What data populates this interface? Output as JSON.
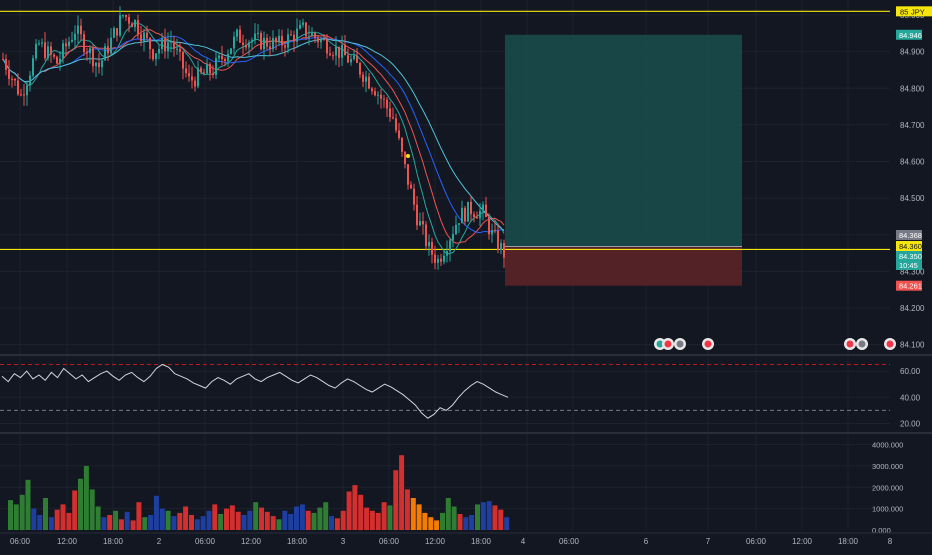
{
  "colors": {
    "background": "#131722",
    "grid": "#1e222d",
    "axis_text": "#b2b5be",
    "candle_up": "#26a69a",
    "candle_down": "#ef5350",
    "hline": "#f5e50a",
    "ma_fast": "#26a69a",
    "ma_mid": "#ef5350",
    "ma_slow": "#2962ff",
    "ma_slowest": "#4fc3d8",
    "profit_zone": "#1a4a4a",
    "loss_zone": "#5a2428",
    "rsi_line": "#d1d4dc",
    "rsi_band": "#787b86",
    "rsi_top_line": "#b71c1c",
    "vol_green": "#2e7d32",
    "vol_red": "#d32f2f",
    "vol_blue": "#1e3fa0",
    "vol_orange": "#f57c00",
    "badge_blue": "#26a69a",
    "badge_gray": "#787b86",
    "badge_red": "#f23645"
  },
  "price_axis": {
    "symbol_tag": "85",
    "symbol_tag_suffix": "JPY",
    "ticks": [
      "85.000",
      "84.900",
      "84.800",
      "84.700",
      "84.600",
      "84.500",
      "84.300",
      "84.200",
      "84.100"
    ],
    "labels": [
      {
        "value": "84.946",
        "kind": "target"
      },
      {
        "value": "84.368",
        "kind": "gray"
      },
      {
        "value": "84.360",
        "kind": "yellow"
      },
      {
        "value": "84.350",
        "kind": "current"
      },
      {
        "value": "10:45",
        "kind": "countdown"
      },
      {
        "value": "84.261",
        "kind": "stop"
      }
    ]
  },
  "rsi_axis": {
    "ticks": [
      "60.00",
      "40.00",
      "20.00"
    ]
  },
  "volume_axis": {
    "ticks": [
      "4000.000",
      "3000.000",
      "2000.000",
      "1000.000",
      "0.000"
    ]
  },
  "time_axis": {
    "ticks": [
      "06:00",
      "12:00",
      "18:00",
      "2",
      "06:00",
      "12:00",
      "18:00",
      "3",
      "06:00",
      "12:00",
      "18:00",
      "4",
      "06:00",
      "6",
      "7",
      "06:00",
      "12:00",
      "18:00",
      "8"
    ]
  },
  "chart_data": [
    {
      "type": "candlestick",
      "pane": "price",
      "symbol_fragment": "JPY",
      "ylim": [
        84.08,
        85.03
      ],
      "horizontal_lines": [
        85.01,
        84.36
      ],
      "current_price": 84.35,
      "position": {
        "entry": 84.368,
        "target": 84.946,
        "stop": 84.261
      },
      "series_overview": [
        {
          "segment": "day1",
          "start": 84.88,
          "high": 85.02,
          "low": 84.74,
          "end": 84.98
        },
        {
          "segment": "day2",
          "start": 84.98,
          "high": 85.0,
          "low": 84.82,
          "end": 84.93
        },
        {
          "segment": "day3 selloff",
          "start": 84.95,
          "high": 84.97,
          "low": 84.31,
          "end": 84.35
        },
        {
          "segment": "late bounce",
          "start": 84.38,
          "high": 84.51,
          "low": 84.34,
          "end": 84.35
        }
      ],
      "moving_averages": [
        "fast",
        "mid",
        "slow",
        "slowest"
      ]
    },
    {
      "type": "line",
      "pane": "rsi",
      "ylim": [
        15,
        70
      ],
      "bands": [
        65,
        30
      ],
      "values": [
        56,
        52,
        58,
        55,
        60,
        54,
        57,
        53,
        59,
        55,
        62,
        58,
        54,
        57,
        52,
        55,
        58,
        60,
        56,
        53,
        57,
        59,
        55,
        52,
        56,
        62,
        65,
        63,
        58,
        56,
        54,
        51,
        49,
        47,
        52,
        55,
        53,
        50,
        54,
        56,
        58,
        54,
        52,
        55,
        57,
        59,
        56,
        53,
        51,
        54,
        57,
        55,
        52,
        49,
        47,
        51,
        54,
        52,
        49,
        46,
        44,
        47,
        50,
        48,
        45,
        42,
        38,
        34,
        28,
        24,
        27,
        32,
        30,
        34,
        40,
        45,
        49,
        52,
        50,
        47,
        44,
        42,
        40
      ]
    },
    {
      "type": "bar",
      "pane": "volume",
      "ylim": [
        0,
        4400
      ],
      "values": [
        1400,
        1200,
        1650,
        2350,
        1000,
        700,
        1500,
        600,
        950,
        1200,
        800,
        1850,
        2400,
        3000,
        1900,
        1100,
        600,
        700,
        900,
        500,
        850,
        450,
        1300,
        600,
        700,
        1600,
        1000,
        900,
        650,
        800,
        1100,
        700,
        500,
        650,
        900,
        1200,
        750,
        1000,
        1150,
        850,
        700,
        900,
        1300,
        1050,
        850,
        650,
        500,
        900,
        750,
        1100,
        1200,
        900,
        800,
        1050,
        1300,
        650,
        550,
        900,
        1800,
        2100,
        1650,
        1050,
        900,
        800,
        1300,
        1150,
        2800,
        3500,
        1900,
        1500,
        1200,
        800,
        600,
        450,
        800,
        1500,
        1100,
        750,
        600,
        700,
        1200,
        1300,
        1350,
        1150,
        950,
        600
      ],
      "color_codes": "ggggbbgbrrrrggggbrgrbrrgbbbgbrrrbbbrgrrrbbgrrrgbbbbrgggbrrrrrrrrrgrrrooooogggrbbgbbrrb"
    }
  ]
}
